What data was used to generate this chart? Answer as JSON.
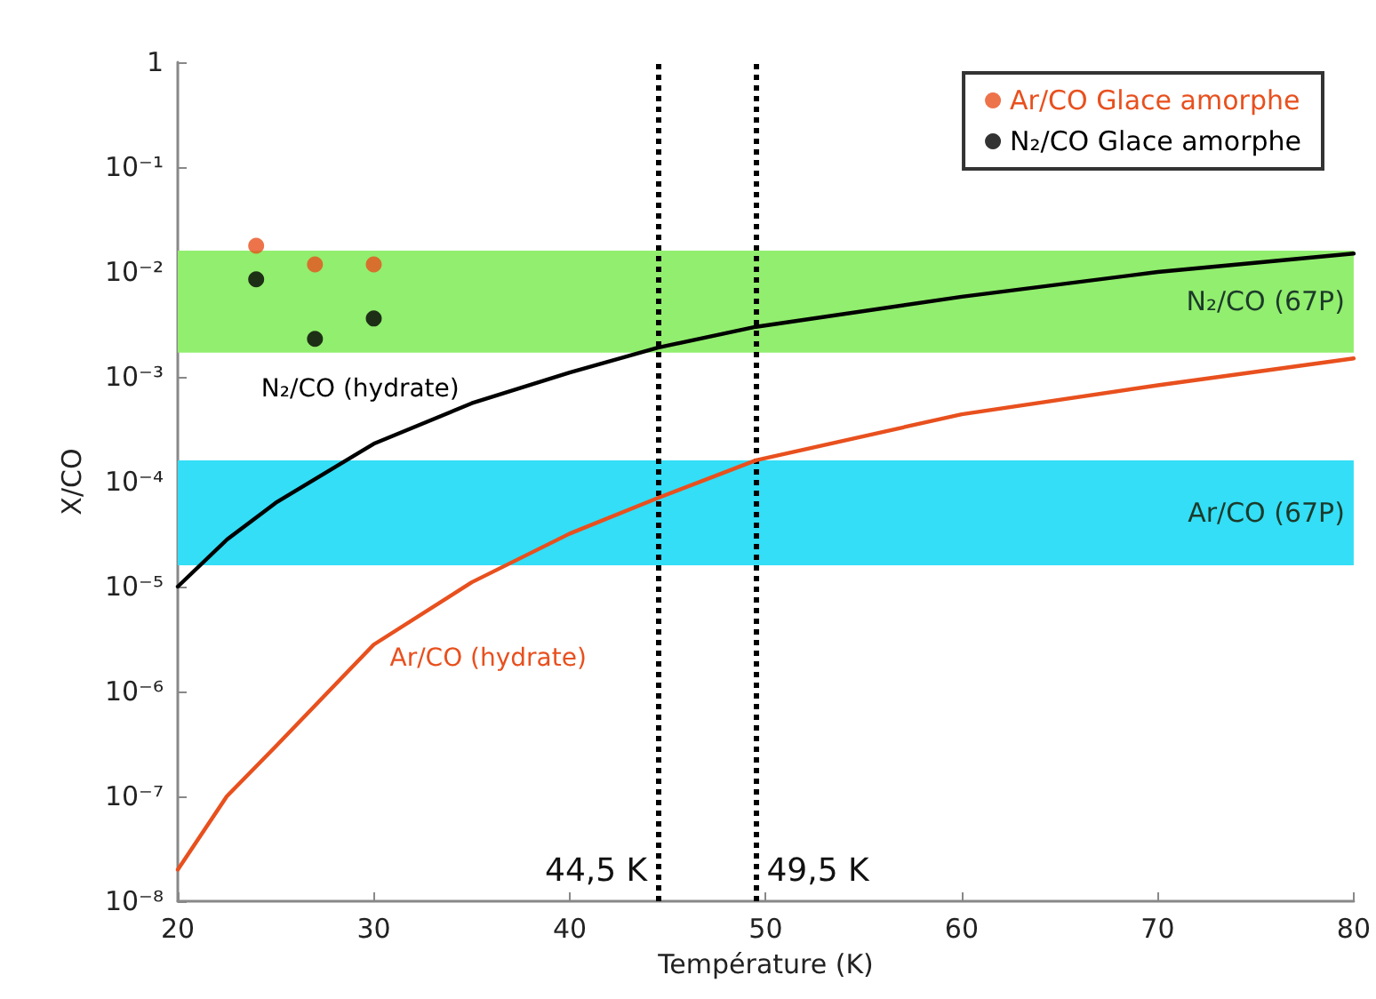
{
  "chart_data": {
    "type": "line",
    "xlabel": "Température (K)",
    "ylabel": "X/CO",
    "xlim": [
      20,
      80
    ],
    "xticks": [
      20,
      30,
      40,
      50,
      60,
      70,
      80
    ],
    "ylim": [
      1e-08,
      1
    ],
    "log": "y",
    "yticks": [
      {
        "value": 1e-08,
        "label": "10⁻⁸"
      },
      {
        "value": 1e-07,
        "label": "10⁻⁷"
      },
      {
        "value": 1e-06,
        "label": "10⁻⁶"
      },
      {
        "value": 1e-05,
        "label": "10⁻⁵"
      },
      {
        "value": 0.0001,
        "label": "10⁻⁴"
      },
      {
        "value": 0.001,
        "label": "10⁻³"
      },
      {
        "value": 0.01,
        "label": "10⁻²"
      },
      {
        "value": 0.1,
        "label": "10⁻¹"
      },
      1
    ],
    "grid": false,
    "legend": "top right",
    "series": [
      {
        "name": "N₂/CO (hydrate)",
        "color": "#000000",
        "marker": "none",
        "line_style": "solid",
        "x": [
          20,
          22.5,
          25,
          30,
          35,
          40,
          44.5,
          49.5,
          60,
          70,
          80
        ],
        "values": [
          1e-05,
          2.8e-05,
          6.3e-05,
          0.00023,
          0.00056,
          0.0011,
          0.0019,
          0.003,
          0.0058,
          0.01,
          0.015
        ]
      },
      {
        "name": "Ar/CO (hydrate)",
        "color": "#e8501e",
        "marker": "none",
        "line_style": "solid",
        "x": [
          20,
          22.5,
          25,
          30,
          35,
          40,
          44.5,
          49.5,
          60,
          70,
          80
        ],
        "values": [
          2e-08,
          1e-07,
          3e-07,
          2.8e-06,
          1.1e-05,
          3.2e-05,
          7e-05,
          0.00016,
          0.00044,
          0.00083,
          0.0015
        ]
      },
      {
        "name": "Ar/CO Glace amorphe",
        "type": "scatter",
        "color": "#e8501e",
        "marker": "circle",
        "x": [
          24,
          27,
          30
        ],
        "values": [
          0.0178,
          0.0118,
          0.0118
        ]
      },
      {
        "name": "N₂/CO Glace amorphe",
        "type": "scatter",
        "color": "#000000",
        "marker": "circle",
        "x": [
          24,
          27,
          30
        ],
        "values": [
          0.0085,
          0.0023,
          0.0036
        ]
      }
    ],
    "bands": [
      {
        "axis": "y",
        "from": 0.0017,
        "to": 0.016,
        "label": "N₂/CO (67P)",
        "color": "#92ee6e"
      },
      {
        "axis": "y",
        "from": 1.6e-05,
        "to": 0.00016,
        "label": "Ar/CO (67P)",
        "color": "#33def6"
      }
    ],
    "ref_lines": [
      {
        "axis": "x",
        "value": 44.5,
        "label": "44,5 K",
        "color": "#000000",
        "line_style": "dotted"
      },
      {
        "axis": "x",
        "value": 49.5,
        "label": "49,5 K",
        "color": "#000000",
        "line_style": "dotted"
      }
    ]
  }
}
